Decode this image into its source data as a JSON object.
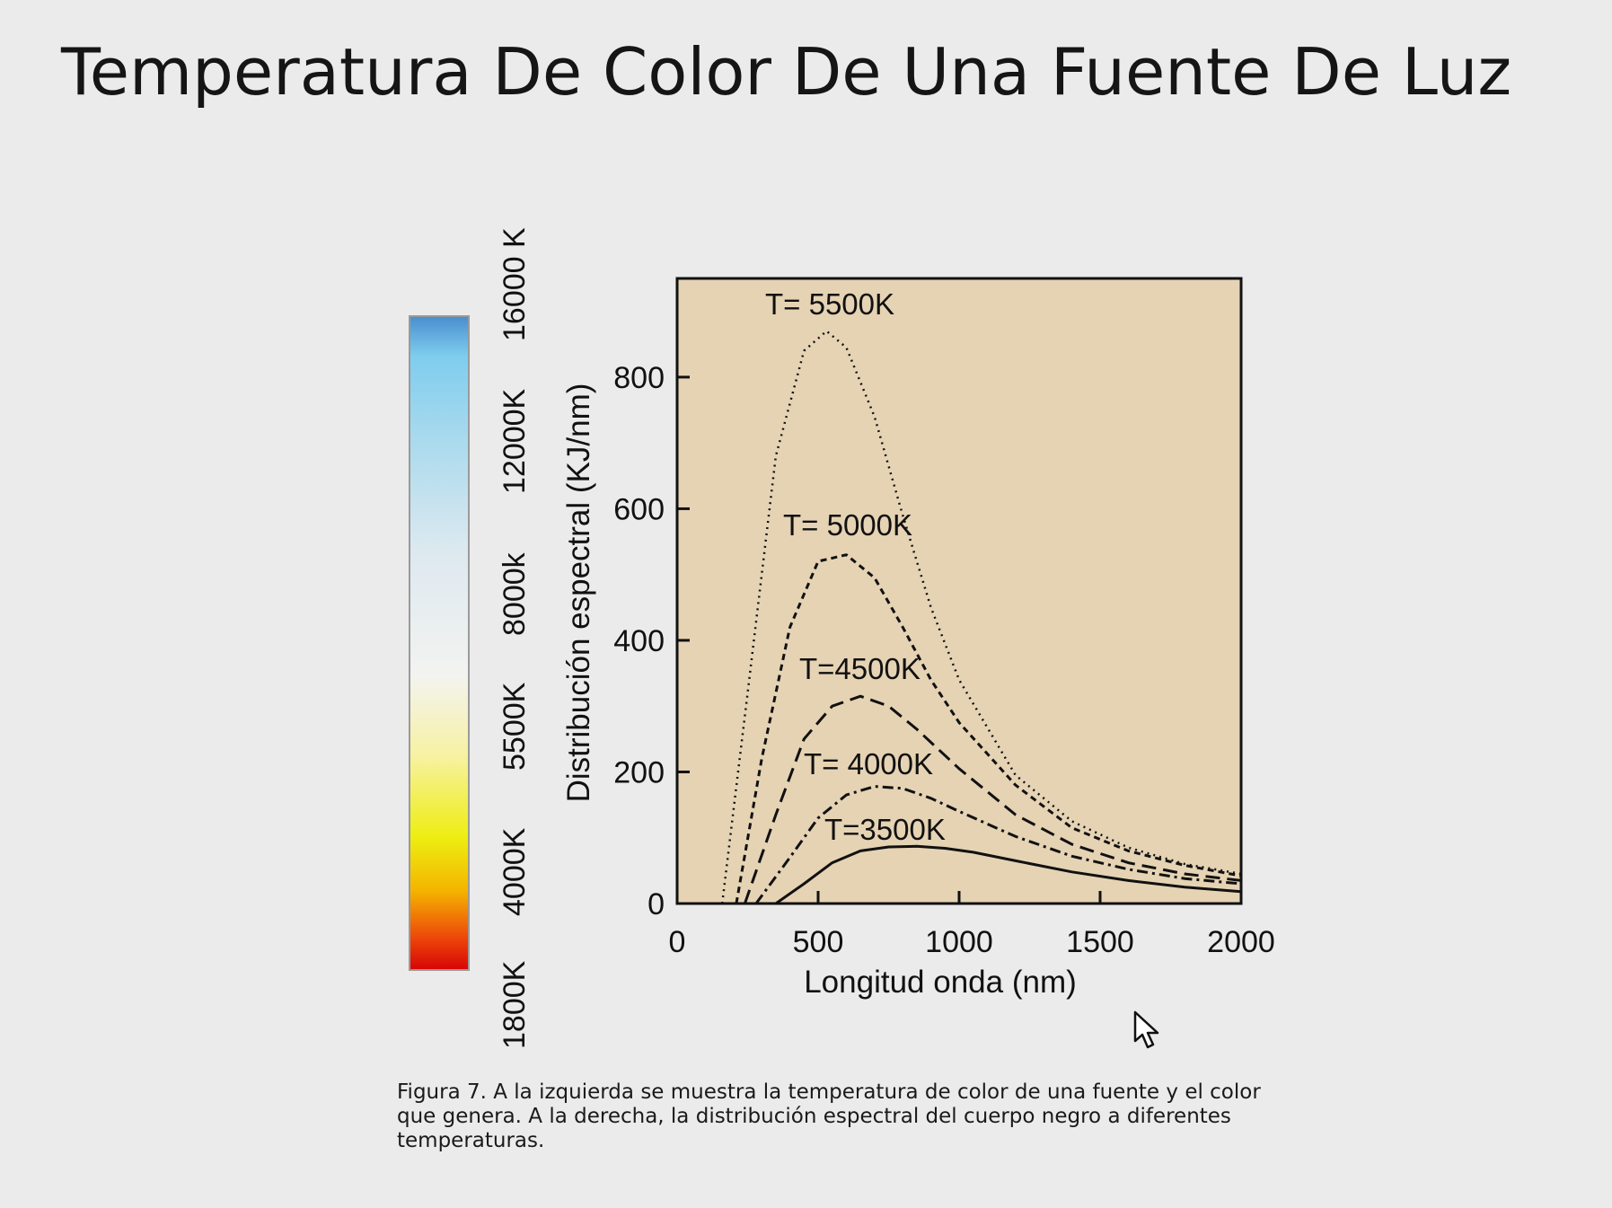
{
  "slide": {
    "title": "Temperatura De Color De Una Fuente De Luz",
    "caption": "Figura 7. A la izquierda se muestra la temperatura de color de una fuente y el color que genera. A la derecha, la distribución espectral del cuerpo negro a diferentes temperaturas."
  },
  "color_scale": {
    "labels": [
      "16000 K",
      "12000K",
      "8000k",
      "5500K",
      "4000K",
      "1800K"
    ],
    "gradient_colors": [
      "#4a8fd0",
      "#7ecdee",
      "#a7d9ee",
      "#dde9ef",
      "#f3f3f1",
      "#f7f2a4",
      "#eded10",
      "#f4b400",
      "#ee4a0a",
      "#d80606"
    ]
  },
  "chart_data": {
    "type": "line",
    "xlabel": "Longitud onda (nm)",
    "ylabel": "Distribución espectral (KJ/nm)",
    "xlim": [
      0,
      2000
    ],
    "ylim": [
      0,
      950
    ],
    "x_ticks": [
      "0",
      "500",
      "1000",
      "1500",
      "2000"
    ],
    "y_ticks": [
      "0",
      "200",
      "400",
      "600",
      "800"
    ],
    "background": "#e5d3b4",
    "series": [
      {
        "name": "T= 5500K",
        "style": "dotted",
        "x": [
          160,
          250,
          350,
          450,
          530,
          600,
          700,
          800,
          900,
          1000,
          1200,
          1400,
          1600,
          1800,
          2000
        ],
        "y": [
          0,
          320,
          680,
          840,
          870,
          845,
          740,
          590,
          450,
          340,
          195,
          125,
          85,
          60,
          45
        ]
      },
      {
        "name": "T= 5000K",
        "style": "dashed-short",
        "x": [
          210,
          300,
          400,
          500,
          600,
          700,
          800,
          900,
          1000,
          1200,
          1400,
          1600,
          1800,
          2000
        ],
        "y": [
          0,
          220,
          420,
          520,
          530,
          495,
          420,
          340,
          275,
          180,
          115,
          80,
          58,
          42
        ]
      },
      {
        "name": "T=4500K",
        "style": "dashed",
        "x": [
          240,
          350,
          450,
          550,
          650,
          750,
          850,
          1000,
          1200,
          1400,
          1600,
          1800,
          2000
        ],
        "y": [
          0,
          135,
          250,
          300,
          315,
          300,
          265,
          205,
          135,
          90,
          62,
          45,
          35
        ]
      },
      {
        "name": "T= 4000K",
        "style": "dash-dot",
        "x": [
          280,
          400,
          500,
          600,
          700,
          800,
          900,
          1000,
          1200,
          1400,
          1600,
          1800,
          2000
        ],
        "y": [
          0,
          70,
          130,
          165,
          178,
          175,
          160,
          140,
          102,
          72,
          52,
          38,
          30
        ]
      },
      {
        "name": "T=3500K",
        "style": "solid",
        "x": [
          350,
          450,
          550,
          650,
          750,
          850,
          950,
          1050,
          1200,
          1400,
          1600,
          1800,
          2000
        ],
        "y": [
          0,
          30,
          62,
          80,
          86,
          87,
          84,
          78,
          65,
          48,
          35,
          25,
          18
        ]
      }
    ]
  }
}
